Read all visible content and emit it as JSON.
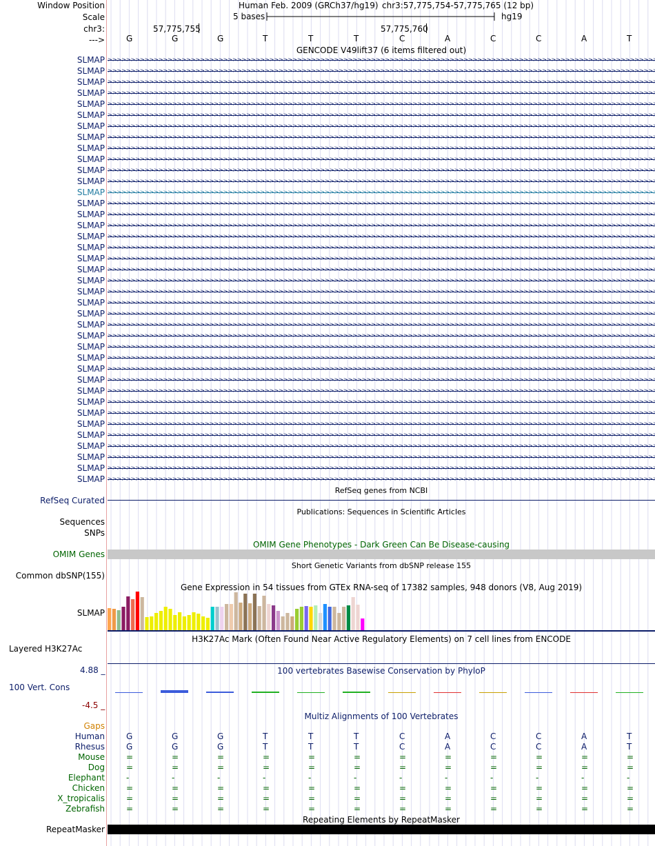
{
  "header": {
    "window_position_label": "Window Position",
    "assembly": "Human Feb. 2009 (GRCh37/hg19)",
    "position": "chr3:57,775,754-57,775,765 (12 bp)",
    "scale_label": "Scale",
    "scale_text": "5 bases",
    "db": "hg19",
    "chrom_label": "chr3:",
    "coord1": "57,775,755",
    "coord2": "57,775,760",
    "strand_label": "--->"
  },
  "bases": [
    "G",
    "G",
    "G",
    "T",
    "T",
    "T",
    "C",
    "A",
    "C",
    "C",
    "A",
    "T"
  ],
  "gencode": {
    "title": "GENCODE V49lift37 (6 items filtered out)",
    "gene_name": "SLMAP",
    "row_count": 39,
    "highlight_row": 12
  },
  "refseq": {
    "title": "RefSeq genes from NCBI",
    "label": "RefSeq Curated"
  },
  "publications": {
    "title": "Publications: Sequences in Scientific Articles",
    "label1": "Sequences",
    "label2": "SNPs"
  },
  "omim": {
    "title": "OMIM Gene Phenotypes - Dark Green Can Be Disease-causing",
    "label": "OMIM Genes"
  },
  "dbsnp": {
    "title": "Short Genetic Variants from dbSNP release 155",
    "label": "Common dbSNP(155)"
  },
  "gtex": {
    "title": "Gene Expression in 54 tissues from GTEx RNA-seq of 17382 samples, 948 donors (V8, Aug 2019)",
    "label": "SLMAP",
    "bars": [
      {
        "v": 0.58,
        "c": "#ffa54f"
      },
      {
        "v": 0.55,
        "c": "#ee9a49"
      },
      {
        "v": 0.52,
        "c": "#8fbc8f"
      },
      {
        "v": 0.6,
        "c": "#8b1c62"
      },
      {
        "v": 0.88,
        "c": "#8b1c62"
      },
      {
        "v": 0.8,
        "c": "#ee6a50"
      },
      {
        "v": 1.0,
        "c": "#ff0000"
      },
      {
        "v": 0.85,
        "c": "#cdb79e"
      },
      {
        "v": 0.34,
        "c": "#eeee00"
      },
      {
        "v": 0.36,
        "c": "#eeee00"
      },
      {
        "v": 0.44,
        "c": "#eeee00"
      },
      {
        "v": 0.5,
        "c": "#eeee00"
      },
      {
        "v": 0.6,
        "c": "#eeee00"
      },
      {
        "v": 0.56,
        "c": "#eeee00"
      },
      {
        "v": 0.4,
        "c": "#eeee00"
      },
      {
        "v": 0.46,
        "c": "#eeee00"
      },
      {
        "v": 0.36,
        "c": "#eeee00"
      },
      {
        "v": 0.4,
        "c": "#eeee00"
      },
      {
        "v": 0.46,
        "c": "#eeee00"
      },
      {
        "v": 0.43,
        "c": "#eeee00"
      },
      {
        "v": 0.36,
        "c": "#eeee00"
      },
      {
        "v": 0.33,
        "c": "#eeee00"
      },
      {
        "v": 0.6,
        "c": "#00cdcd"
      },
      {
        "v": 0.6,
        "c": "#9ac0cd"
      },
      {
        "v": 0.6,
        "c": "#eed2ee"
      },
      {
        "v": 0.68,
        "c": "#cdb79e"
      },
      {
        "v": 0.68,
        "c": "#eecbad"
      },
      {
        "v": 0.98,
        "c": "#cdb79e"
      },
      {
        "v": 0.72,
        "c": "#cdaa7d"
      },
      {
        "v": 0.95,
        "c": "#8b7355"
      },
      {
        "v": 0.7,
        "c": "#cdaa7d"
      },
      {
        "v": 0.95,
        "c": "#8b7355"
      },
      {
        "v": 0.62,
        "c": "#cdb79e"
      },
      {
        "v": 0.9,
        "c": "#cdb79e"
      },
      {
        "v": 0.68,
        "c": "#eed5d2"
      },
      {
        "v": 0.65,
        "c": "#8b3a8b"
      },
      {
        "v": 0.5,
        "c": "#cd96cd"
      },
      {
        "v": 0.36,
        "c": "#cdb79e"
      },
      {
        "v": 0.45,
        "c": "#cdb79e"
      },
      {
        "v": 0.35,
        "c": "#cdaa7d"
      },
      {
        "v": 0.56,
        "c": "#9acd32"
      },
      {
        "v": 0.6,
        "c": "#9acd32"
      },
      {
        "v": 0.62,
        "c": "#7a67ee"
      },
      {
        "v": 0.6,
        "c": "#ffd700"
      },
      {
        "v": 0.65,
        "c": "#b4eeb4"
      },
      {
        "v": 0.45,
        "c": "#d9d9d9"
      },
      {
        "v": 0.68,
        "c": "#1e90ff"
      },
      {
        "v": 0.6,
        "c": "#4169e1"
      },
      {
        "v": 0.6,
        "c": "#cdb79e"
      },
      {
        "v": 0.45,
        "c": "#cdb79e"
      },
      {
        "v": 0.6,
        "c": "#cdb79e"
      },
      {
        "v": 0.65,
        "c": "#008b45"
      },
      {
        "v": 0.85,
        "c": "#eed5d2"
      },
      {
        "v": 0.66,
        "c": "#eed5d2"
      },
      {
        "v": 0.3,
        "c": "#ff00ff"
      }
    ]
  },
  "h3k27ac": {
    "title": "H3K27Ac Mark (Often Found Near Active Regulatory Elements) on 7 cell lines from ENCODE",
    "label": "Layered H3K27Ac"
  },
  "phylop": {
    "title": "100 vertebrates Basewise Conservation by PhyloP",
    "label": "100 Vert. Cons",
    "max": "4.88 _",
    "min": "-4.5 _",
    "values": [
      0.3,
      0.9,
      0.4,
      0.5,
      0.2,
      0.5,
      0.2,
      0.2,
      0.2,
      0.15,
      0.25,
      0.3
    ],
    "colors": [
      "#3b5bdb",
      "#3b5bdb",
      "#3b5bdb",
      "#20b020",
      "#20b020",
      "#20b020",
      "#c8a000",
      "#e03030",
      "#c8a000",
      "#3b5bdb",
      "#e03030",
      "#20b020"
    ]
  },
  "multiz": {
    "title": "Multiz Alignments of 100 Vertebrates",
    "gaps_label": "Gaps",
    "species": [
      {
        "name": "Human",
        "row": [
          "G",
          "G",
          "G",
          "T",
          "T",
          "T",
          "C",
          "A",
          "C",
          "C",
          "A",
          "T"
        ]
      },
      {
        "name": "Rhesus",
        "row": [
          "G",
          "G",
          "G",
          "T",
          "T",
          "T",
          "C",
          "A",
          "C",
          "C",
          "A",
          "T"
        ]
      },
      {
        "name": "Mouse",
        "row": [
          "=",
          "=",
          "=",
          "=",
          "=",
          "=",
          "=",
          "=",
          "=",
          "=",
          "=",
          "="
        ]
      },
      {
        "name": "Dog",
        "row": [
          "=",
          "=",
          "=",
          "=",
          "=",
          "=",
          "=",
          "=",
          "=",
          "=",
          "=",
          "="
        ]
      },
      {
        "name": "Elephant",
        "row": [
          "-",
          "-",
          "-",
          "-",
          "-",
          "-",
          "-",
          "-",
          "-",
          "-",
          "-",
          "-"
        ]
      },
      {
        "name": "Chicken",
        "row": [
          "=",
          "=",
          "=",
          "=",
          "=",
          "=",
          "=",
          "=",
          "=",
          "=",
          "=",
          "="
        ]
      },
      {
        "name": "X_tropicalis",
        "row": [
          "=",
          "=",
          "=",
          "=",
          "=",
          "=",
          "=",
          "=",
          "=",
          "=",
          "=",
          "="
        ]
      },
      {
        "name": "Zebrafish",
        "row": [
          "=",
          "=",
          "=",
          "=",
          "=",
          "=",
          "=",
          "=",
          "=",
          "=",
          "=",
          "="
        ]
      }
    ]
  },
  "repeatmasker": {
    "title": "Repeating Elements by RepeatMasker",
    "label": "RepeatMasker"
  },
  "colors": {
    "navy": "#0b1c68",
    "highlight": "#1f7aa0",
    "green": "#006400",
    "gaps": "#d08000",
    "omim_bar": "#c8c8c8"
  }
}
